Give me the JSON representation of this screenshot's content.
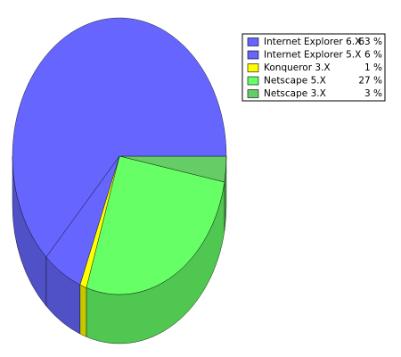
{
  "chart_data": {
    "type": "pie",
    "categories": [
      "Internet Explorer 6.X",
      "Internet Explorer 5.X",
      "Konqueror 3.X",
      "Netscape 5.X",
      "Netscape 3.X"
    ],
    "values": [
      63,
      6,
      1,
      27,
      3
    ],
    "value_labels": [
      "63 %",
      "6 %",
      "1 %",
      "27 %",
      "3 %"
    ],
    "colors": [
      "#6666ff",
      "#6666ff",
      "#ffff00",
      "#66ff66",
      "#66cc66"
    ]
  }
}
